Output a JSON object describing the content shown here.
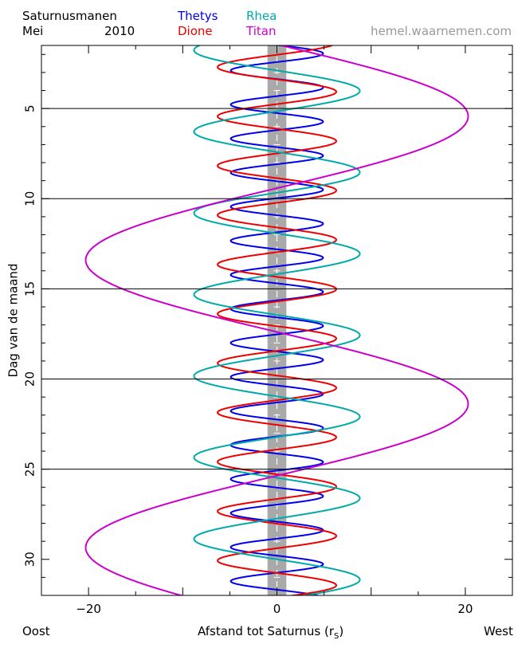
{
  "header": {
    "title": "Saturnusmanen",
    "month": "Mei",
    "year": "2010",
    "website": "hemel.waarnemen.com"
  },
  "labels": {
    "east": "Oost",
    "west": "West"
  },
  "chart_data": {
    "type": "line",
    "orientation": "vertical-time",
    "xlabel_main": "Afstand tot Saturnus (r",
    "xlabel_sub": "S",
    "xlabel_close": ")",
    "ylabel": "Dag van de maand",
    "xlim": [
      -25,
      25
    ],
    "ylim": [
      1.5,
      32
    ],
    "x_ticks": [
      -20,
      0,
      20
    ],
    "y_ticks": [
      5,
      10,
      15,
      20,
      25,
      30
    ],
    "day_lines": [
      5,
      10,
      15,
      20,
      25
    ],
    "planet_band_halfwidth": 1,
    "series": [
      {
        "name": "Thetys",
        "color": "#0000ee",
        "amplitude": 4.9,
        "period": 1.888,
        "phase_day": 1.95
      },
      {
        "name": "Dione",
        "color": "#ee0000",
        "amplitude": 6.3,
        "period": 2.737,
        "phase_day": 4.07
      },
      {
        "name": "Rhea",
        "color": "#00aaaa",
        "amplitude": 8.8,
        "period": 4.518,
        "phase_day": 4.02
      },
      {
        "name": "Titan",
        "color": "#cc00cc",
        "amplitude": 20.3,
        "period": 15.945,
        "phase_day": 5.43
      }
    ]
  }
}
